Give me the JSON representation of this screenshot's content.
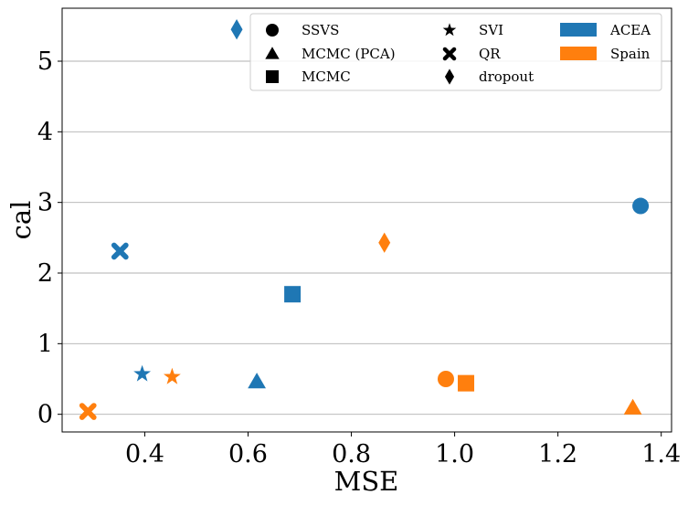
{
  "chart_data": {
    "type": "scatter",
    "title": "",
    "xlabel": "MSE",
    "ylabel": "cal",
    "xlim": [
      0.24,
      1.42
    ],
    "ylim": [
      -0.25,
      5.75
    ],
    "xticks": [
      0.4,
      0.6,
      0.8,
      1.0,
      1.2,
      1.4
    ],
    "xtick_labels": [
      "0.4",
      "0.6",
      "0.8",
      "1.0",
      "1.2",
      "1.4"
    ],
    "yticks": [
      0,
      1,
      2,
      3,
      4,
      5
    ],
    "ytick_labels": [
      "0",
      "1",
      "2",
      "3",
      "4",
      "5"
    ],
    "grid": "horizontal",
    "legend_position": "top-right",
    "colors": {
      "ACEA": "#1f77b4",
      "Spain": "#ff7f0e"
    },
    "methods": [
      {
        "name": "SSVS",
        "marker": "circle"
      },
      {
        "name": "MCMC (PCA)",
        "marker": "triangle"
      },
      {
        "name": "MCMC",
        "marker": "square"
      },
      {
        "name": "SVI",
        "marker": "star"
      },
      {
        "name": "QR",
        "marker": "x"
      },
      {
        "name": "dropout",
        "marker": "diamond"
      }
    ],
    "datasets": [
      "ACEA",
      "Spain"
    ],
    "points": [
      {
        "method": "SSVS",
        "dataset": "ACEA",
        "x": 1.36,
        "y": 2.95
      },
      {
        "method": "SSVS",
        "dataset": "Spain",
        "x": 0.983,
        "y": 0.5
      },
      {
        "method": "MCMC (PCA)",
        "dataset": "ACEA",
        "x": 0.617,
        "y": 0.46
      },
      {
        "method": "MCMC (PCA)",
        "dataset": "Spain",
        "x": 1.345,
        "y": 0.09
      },
      {
        "method": "MCMC",
        "dataset": "ACEA",
        "x": 0.686,
        "y": 1.7
      },
      {
        "method": "MCMC",
        "dataset": "Spain",
        "x": 1.022,
        "y": 0.44
      },
      {
        "method": "SVI",
        "dataset": "ACEA",
        "x": 0.395,
        "y": 0.57
      },
      {
        "method": "SVI",
        "dataset": "Spain",
        "x": 0.453,
        "y": 0.53
      },
      {
        "method": "QR",
        "dataset": "ACEA",
        "x": 0.352,
        "y": 2.31
      },
      {
        "method": "QR",
        "dataset": "Spain",
        "x": 0.29,
        "y": 0.04
      },
      {
        "method": "dropout",
        "dataset": "ACEA",
        "x": 0.578,
        "y": 5.45
      },
      {
        "method": "dropout",
        "dataset": "Spain",
        "x": 0.864,
        "y": 2.43
      }
    ]
  }
}
